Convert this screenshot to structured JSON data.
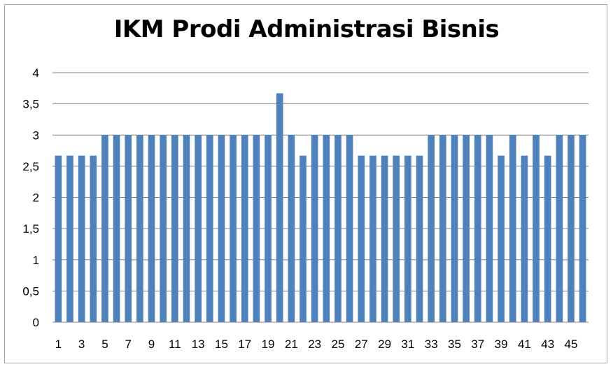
{
  "chart_data": {
    "type": "bar",
    "title": "IKM Prodi Administrasi Bisnis",
    "xlabel": "",
    "ylabel": "",
    "ylim": [
      0,
      4
    ],
    "y_ticks": [
      "0",
      "0,5",
      "1",
      "1,5",
      "2",
      "2,5",
      "3",
      "3,5",
      "4"
    ],
    "y_tick_values": [
      0,
      0.5,
      1,
      1.5,
      2,
      2.5,
      3,
      3.5,
      4
    ],
    "categories": [
      1,
      2,
      3,
      4,
      5,
      6,
      7,
      8,
      9,
      10,
      11,
      12,
      13,
      14,
      15,
      16,
      17,
      18,
      19,
      20,
      21,
      22,
      23,
      24,
      25,
      26,
      27,
      28,
      29,
      30,
      31,
      32,
      33,
      34,
      35,
      36,
      37,
      38,
      39,
      40,
      41,
      42,
      43,
      44,
      45,
      46
    ],
    "x_tick_labels": [
      "1",
      "3",
      "5",
      "7",
      "9",
      "11",
      "13",
      "15",
      "17",
      "19",
      "21",
      "23",
      "25",
      "27",
      "29",
      "31",
      "33",
      "35",
      "37",
      "39",
      "41",
      "43",
      "45"
    ],
    "values": [
      2.67,
      2.67,
      2.67,
      2.67,
      3,
      3,
      3,
      3,
      3,
      3,
      3,
      3,
      3,
      3,
      3,
      3,
      3,
      3,
      3,
      3.67,
      3,
      2.67,
      3,
      3,
      3,
      3,
      2.67,
      2.67,
      2.67,
      2.67,
      2.67,
      2.67,
      3,
      3,
      3,
      3,
      3,
      3,
      2.67,
      3,
      2.67,
      3,
      2.67,
      3,
      3,
      3
    ],
    "grid": true,
    "legend": "none",
    "bar_color": "#4f81bd",
    "grid_color": "#868686"
  }
}
